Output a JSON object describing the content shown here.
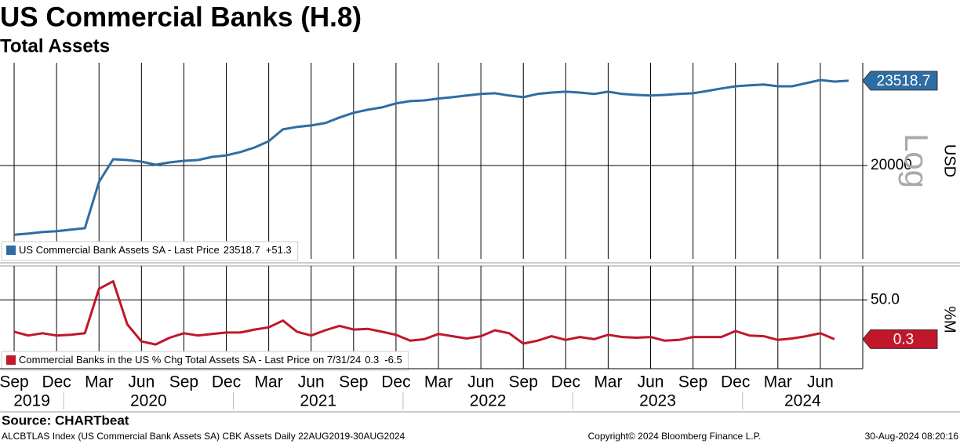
{
  "title": "US Commercial Banks (H.8)",
  "subtitle": "Total Assets",
  "source": "Source: CHARTbeat",
  "footer": {
    "left": "ALCBTLAS Index (US Commercial Bank Assets SA) CBK Assets  Daily 22AUG2019-30AUG2024",
    "center": "Copyright© 2024 Bloomberg Finance L.P.",
    "right": "30-Aug-2024 08:20:16"
  },
  "chart_data": [
    {
      "type": "line",
      "log_scale": true,
      "grid": true,
      "y_axis_label": "USD",
      "scale_label": "Log",
      "x": [
        "2019-09",
        "2019-10",
        "2019-11",
        "2019-12",
        "2020-01",
        "2020-02",
        "2020-03",
        "2020-04",
        "2020-05",
        "2020-06",
        "2020-07",
        "2020-08",
        "2020-09",
        "2020-10",
        "2020-11",
        "2020-12",
        "2021-01",
        "2021-02",
        "2021-03",
        "2021-04",
        "2021-05",
        "2021-06",
        "2021-07",
        "2021-08",
        "2021-09",
        "2021-10",
        "2021-11",
        "2021-12",
        "2022-01",
        "2022-02",
        "2022-03",
        "2022-04",
        "2022-05",
        "2022-06",
        "2022-07",
        "2022-08",
        "2022-09",
        "2022-10",
        "2022-11",
        "2022-12",
        "2023-01",
        "2023-02",
        "2023-03",
        "2023-04",
        "2023-05",
        "2023-06",
        "2023-07",
        "2023-08",
        "2023-09",
        "2023-10",
        "2023-11",
        "2023-12",
        "2024-01",
        "2024-02",
        "2024-03",
        "2024-04",
        "2024-05",
        "2024-06",
        "2024-07",
        "2024-08"
      ],
      "xlim": [
        "2019-08",
        "2024-09"
      ],
      "ylim": [
        16730,
        24340
      ],
      "yticks": [
        20000
      ],
      "series": [
        {
          "name": "US Commercial Bank Assets SA - Last Price",
          "color": "#2e6da4",
          "last_change_label": "+51.3",
          "values": [
            17520,
            17560,
            17610,
            17640,
            17690,
            17740,
            19380,
            20240,
            20210,
            20150,
            20030,
            20120,
            20180,
            20210,
            20330,
            20390,
            20520,
            20700,
            20950,
            21430,
            21530,
            21590,
            21690,
            21920,
            22120,
            22250,
            22350,
            22520,
            22620,
            22650,
            22730,
            22790,
            22860,
            22930,
            22960,
            22860,
            22790,
            22930,
            22990,
            23030,
            22990,
            22930,
            23030,
            22930,
            22890,
            22860,
            22890,
            22930,
            22960,
            23060,
            23170,
            23270,
            23310,
            23350,
            23270,
            23270,
            23410,
            23550,
            23480,
            23518.7
          ]
        }
      ]
    },
    {
      "type": "line",
      "log_scale": false,
      "grid": true,
      "y_axis_label": "%M",
      "x": [
        "2019-09",
        "2019-10",
        "2019-11",
        "2019-12",
        "2020-01",
        "2020-02",
        "2020-03",
        "2020-04",
        "2020-05",
        "2020-06",
        "2020-07",
        "2020-08",
        "2020-09",
        "2020-10",
        "2020-11",
        "2020-12",
        "2021-01",
        "2021-02",
        "2021-03",
        "2021-04",
        "2021-05",
        "2021-06",
        "2021-07",
        "2021-08",
        "2021-09",
        "2021-10",
        "2021-11",
        "2021-12",
        "2022-01",
        "2022-02",
        "2022-03",
        "2022-04",
        "2022-05",
        "2022-06",
        "2022-07",
        "2022-08",
        "2022-09",
        "2022-10",
        "2022-11",
        "2022-12",
        "2023-01",
        "2023-02",
        "2023-03",
        "2023-04",
        "2023-05",
        "2023-06",
        "2023-07",
        "2023-08",
        "2023-09",
        "2023-10",
        "2023-11",
        "2023-12",
        "2024-01",
        "2024-02",
        "2024-03",
        "2024-04",
        "2024-05",
        "2024-06",
        "2024-07"
      ],
      "xlim": [
        "2019-08",
        "2024-09"
      ],
      "ylim": [
        -37,
        87
      ],
      "yticks": [
        {
          "value": 50,
          "label": "50.0"
        }
      ],
      "xticks": [
        {
          "value": "2019-09",
          "label": "Sep"
        },
        {
          "value": "2019-12",
          "label": "Dec"
        },
        {
          "value": "2020-03",
          "label": "Mar"
        },
        {
          "value": "2020-06",
          "label": "Jun"
        },
        {
          "value": "2020-09",
          "label": "Sep"
        },
        {
          "value": "2020-12",
          "label": "Dec"
        },
        {
          "value": "2021-03",
          "label": "Mar"
        },
        {
          "value": "2021-06",
          "label": "Jun"
        },
        {
          "value": "2021-09",
          "label": "Sep"
        },
        {
          "value": "2021-12",
          "label": "Dec"
        },
        {
          "value": "2022-03",
          "label": "Mar"
        },
        {
          "value": "2022-06",
          "label": "Jun"
        },
        {
          "value": "2022-09",
          "label": "Sep"
        },
        {
          "value": "2022-12",
          "label": "Dec"
        },
        {
          "value": "2023-03",
          "label": "Mar"
        },
        {
          "value": "2023-06",
          "label": "Jun"
        },
        {
          "value": "2023-09",
          "label": "Sep"
        },
        {
          "value": "2023-12",
          "label": "Dec"
        },
        {
          "value": "2024-03",
          "label": "Mar"
        },
        {
          "value": "2024-06",
          "label": "Jun"
        }
      ],
      "years": [
        "2019",
        "2020",
        "2021",
        "2022",
        "2023",
        "2024"
      ],
      "series": [
        {
          "name": "Commercial Banks in the US % Chg Total Assets SA - Last Price on 7/31/24",
          "color": "#c0172b",
          "last_change_label": "-6.5",
          "values": [
            9.7,
            5,
            7.8,
            5,
            5.9,
            7.8,
            64,
            73.5,
            19,
            -2.5,
            -6.3,
            2.2,
            7.8,
            5,
            6.9,
            8.7,
            8.7,
            12.5,
            15.3,
            23.8,
            9.7,
            5,
            11.6,
            17.2,
            12.5,
            13.4,
            9.7,
            5.9,
            -1.6,
            0.3,
            6.9,
            4.1,
            1.2,
            4.1,
            11.6,
            7.8,
            -5.3,
            -1.6,
            4.1,
            -0.6,
            3.1,
            0.3,
            5.9,
            3.1,
            2.2,
            3.1,
            -1.6,
            -0.6,
            3.1,
            3.1,
            3.1,
            10.6,
            5,
            4.1,
            -0.6,
            1.2,
            4.1,
            7.8,
            0.3
          ]
        }
      ]
    }
  ]
}
